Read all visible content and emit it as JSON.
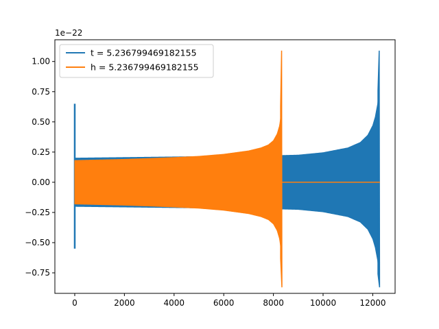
{
  "chart_data": {
    "type": "line",
    "title": "",
    "xlabel": "",
    "ylabel": "",
    "y_offset_label": "1e−22",
    "xlim": [
      -800,
      12900
    ],
    "ylim": [
      -0.92,
      1.18
    ],
    "x_ticks": [
      0,
      2000,
      4000,
      6000,
      8000,
      10000,
      12000
    ],
    "y_ticks": [
      -0.75,
      -0.5,
      -0.25,
      0.0,
      0.25,
      0.5,
      0.75,
      1.0
    ],
    "y_tick_labels": [
      "−0.75",
      "−0.50",
      "−0.25",
      "0.00",
      "0.25",
      "0.50",
      "0.75",
      "1.00"
    ],
    "grid": false,
    "legend_position": "top-left",
    "series": [
      {
        "name": "t = 5.236799469182155",
        "color": "#1f77b4",
        "spike_x": 0,
        "spike_max": 0.65,
        "spike_min": -0.55,
        "envelope": [
          [
            0,
            0.2
          ],
          [
            2000,
            0.205
          ],
          [
            4000,
            0.21
          ],
          [
            6000,
            0.215
          ],
          [
            8000,
            0.22
          ],
          [
            9000,
            0.225
          ],
          [
            10000,
            0.245
          ],
          [
            11000,
            0.285
          ],
          [
            11500,
            0.33
          ],
          [
            11800,
            0.39
          ],
          [
            12000,
            0.47
          ],
          [
            12100,
            0.54
          ],
          [
            12200,
            0.65
          ],
          [
            12250,
            0.76
          ]
        ],
        "peak_x": 12260,
        "peak_max": 1.09,
        "peak_min": -0.87,
        "end_x": 12290
      },
      {
        "name": "h = 5.236799469182155",
        "color": "#ff7f0e",
        "envelope": [
          [
            0,
            0.18
          ],
          [
            1000,
            0.185
          ],
          [
            2000,
            0.19
          ],
          [
            3000,
            0.197
          ],
          [
            4000,
            0.205
          ],
          [
            5000,
            0.215
          ],
          [
            6000,
            0.232
          ],
          [
            7000,
            0.26
          ],
          [
            7500,
            0.285
          ],
          [
            7800,
            0.31
          ],
          [
            8000,
            0.345
          ],
          [
            8150,
            0.4
          ],
          [
            8250,
            0.47
          ],
          [
            8300,
            0.55
          ],
          [
            8320,
            0.63
          ]
        ],
        "peak_x": 8330,
        "peak_max": 1.09,
        "peak_min": -0.87,
        "flat_start": 8350,
        "flat_end": 12290
      }
    ]
  }
}
